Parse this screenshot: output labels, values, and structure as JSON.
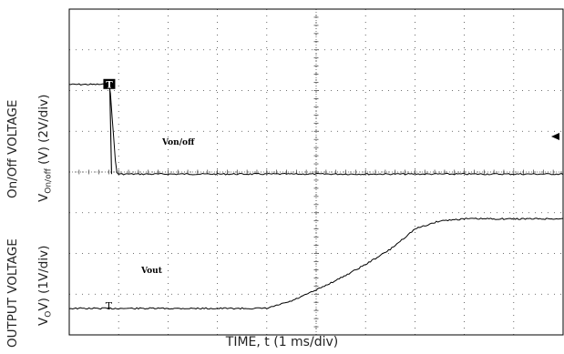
{
  "chart_data": {
    "type": "line",
    "title": "",
    "xlabel": "TIME, t (1 ms/div)",
    "x_unit": "ms",
    "x_divisions": 10,
    "xlim": [
      0,
      10
    ],
    "y_divisions": 8,
    "grid": true,
    "series": [
      {
        "name": "Von/off",
        "y_axis_label_top": "On/Off VOLTAGE",
        "y_axis_label_main": "V",
        "y_axis_label_sub": "On/off",
        "y_axis_label_rest": " (V) (2V/div)",
        "scale": "2V/div",
        "unit": "V",
        "x": [
          0,
          0.8,
          0.82,
          0.95,
          1.0,
          10
        ],
        "y": [
          4.4,
          4.4,
          4.4,
          0.1,
          0.0,
          0.0
        ]
      },
      {
        "name": "Vout",
        "y_axis_label_top": "OUTPUT VOLTAGE",
        "y_axis_label_main": "V",
        "y_axis_label_sub": "O",
        "y_axis_label_rest": "V) (1V/div)",
        "scale": "1V/div",
        "unit": "V",
        "x": [
          0,
          3.5,
          4.0,
          4.5,
          5.0,
          5.5,
          6.0,
          6.5,
          7.0,
          7.5,
          8.0,
          8.5,
          9.0,
          10
        ],
        "y": [
          0.0,
          0.0,
          0.0,
          0.18,
          0.45,
          0.75,
          1.08,
          1.45,
          1.95,
          2.15,
          2.2,
          2.2,
          2.2,
          2.2
        ]
      }
    ],
    "markers": {
      "trigger_marker": "T",
      "vout_start_marker": "T"
    }
  }
}
